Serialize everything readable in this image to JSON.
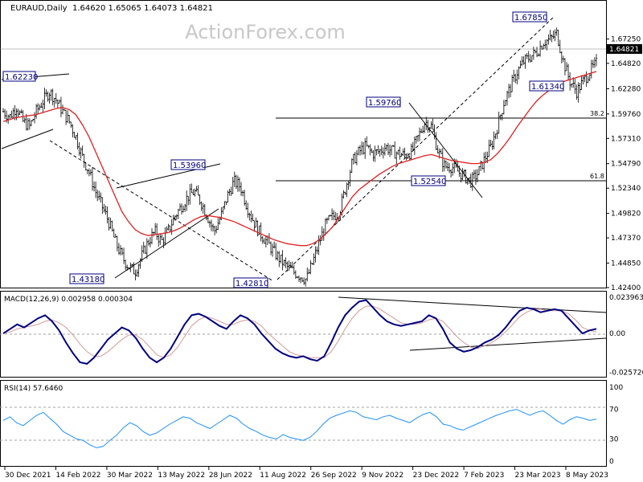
{
  "header": {
    "symbol": "EURAUD,Daily",
    "ohlc": "1.64620 1.65065 1.64073 1.64821"
  },
  "watermark": "ActionForex.com",
  "chart_data": {
    "type": "ohlc",
    "main": {
      "y_ticks": [
        "1.67250",
        "1.64820",
        "1.62280",
        "1.59760",
        "1.57310",
        "1.54790",
        "1.52340",
        "1.49820",
        "1.47370",
        "1.44850",
        "1.42400"
      ],
      "y_range": [
        1.424,
        1.689
      ],
      "current_price": "1.64821",
      "price_labels": [
        "1.62230",
        "1.53960",
        "1.43180",
        "1.42810",
        "1.59760",
        "1.52540",
        "1.67850",
        "1.61340"
      ],
      "fib_labels": [
        "38.2",
        "61.8"
      ],
      "key_levels": {
        "fib_382": 1.5761,
        "fib_618": 1.5254
      },
      "close_series": [
        1.6,
        1.595,
        1.605,
        1.59,
        1.585,
        1.6,
        1.61,
        1.62,
        1.612,
        1.6,
        1.59,
        1.575,
        1.555,
        1.54,
        1.52,
        1.505,
        1.49,
        1.47,
        1.455,
        1.445,
        1.44,
        1.455,
        1.47,
        1.48,
        1.47,
        1.48,
        1.495,
        1.505,
        1.515,
        1.52,
        1.51,
        1.495,
        1.48,
        1.495,
        1.515,
        1.53,
        1.525,
        1.505,
        1.49,
        1.478,
        1.47,
        1.46,
        1.452,
        1.445,
        1.44,
        1.436,
        1.432,
        1.45,
        1.47,
        1.488,
        1.495,
        1.5,
        1.525,
        1.55,
        1.56,
        1.565,
        1.558,
        1.56,
        1.565,
        1.56,
        1.558,
        1.556,
        1.56,
        1.575,
        1.59,
        1.585,
        1.56,
        1.545,
        1.545,
        1.54,
        1.535,
        1.53,
        1.538,
        1.552,
        1.565,
        1.585,
        1.61,
        1.625,
        1.64,
        1.65,
        1.655,
        1.66,
        1.67,
        1.672,
        1.678,
        1.65,
        1.63,
        1.62,
        1.63,
        1.64,
        1.648
      ],
      "ma_series": [
        1.59,
        1.592,
        1.594,
        1.595,
        1.596,
        1.597,
        1.599,
        1.601,
        1.603,
        1.604,
        1.602,
        1.597,
        1.587,
        1.575,
        1.56,
        1.545,
        1.53,
        1.515,
        1.5,
        1.49,
        1.482,
        1.478,
        1.476,
        1.477,
        1.478,
        1.479,
        1.481,
        1.484,
        1.488,
        1.492,
        1.495,
        1.496,
        1.495,
        1.494,
        1.492,
        1.49,
        1.487,
        1.484,
        1.481,
        1.478,
        1.475,
        1.472,
        1.47,
        1.468,
        1.467,
        1.466,
        1.466,
        1.468,
        1.472,
        1.478,
        1.485,
        1.495,
        1.505,
        1.515,
        1.522,
        1.527,
        1.532,
        1.537,
        1.541,
        1.545,
        1.548,
        1.55,
        1.552,
        1.554,
        1.556,
        1.557,
        1.555,
        1.553,
        1.551,
        1.55,
        1.549,
        1.548,
        1.548,
        1.549,
        1.552,
        1.558,
        1.566,
        1.575,
        1.585,
        1.594,
        1.603,
        1.611,
        1.617,
        1.622,
        1.627,
        1.63,
        1.632,
        1.634,
        1.636,
        1.638,
        1.64
      ]
    },
    "macd": {
      "label": "MACD(12,26,9) 0.002958 0.000304",
      "y_ticks": [
        "0.023963",
        "0.00",
        "-0.025726"
      ],
      "y_range": [
        -0.028,
        0.026
      ],
      "series": [
        0.0,
        0.003,
        0.006,
        0.004,
        0.007,
        0.01,
        0.012,
        0.008,
        0.002,
        -0.006,
        -0.013,
        -0.019,
        -0.02,
        -0.016,
        -0.01,
        -0.004,
        0.0,
        0.004,
        0.002,
        -0.003,
        -0.01,
        -0.016,
        -0.019,
        -0.016,
        -0.01,
        -0.002,
        0.006,
        0.012,
        0.013,
        0.011,
        0.008,
        0.005,
        0.003,
        0.008,
        0.012,
        0.01,
        0.006,
        0.0,
        -0.005,
        -0.01,
        -0.013,
        -0.015,
        -0.016,
        -0.015,
        -0.017,
        -0.018,
        -0.015,
        -0.006,
        0.004,
        0.012,
        0.017,
        0.021,
        0.022,
        0.017,
        0.012,
        0.008,
        0.006,
        0.005,
        0.006,
        0.007,
        0.008,
        0.012,
        0.01,
        0.003,
        -0.006,
        -0.01,
        -0.012,
        -0.011,
        -0.009,
        -0.006,
        -0.004,
        -0.001,
        0.004,
        0.01,
        0.015,
        0.017,
        0.016,
        0.014,
        0.015,
        0.016,
        0.015,
        0.01,
        0.005,
        0.0,
        0.002,
        0.003
      ],
      "signal": [
        0.0,
        0.001,
        0.003,
        0.004,
        0.005,
        0.006,
        0.008,
        0.009,
        0.007,
        0.004,
        -0.001,
        -0.007,
        -0.012,
        -0.015,
        -0.015,
        -0.012,
        -0.008,
        -0.004,
        -0.001,
        -0.001,
        -0.004,
        -0.009,
        -0.014,
        -0.016,
        -0.014,
        -0.009,
        -0.002,
        0.005,
        0.009,
        0.011,
        0.01,
        0.008,
        0.006,
        0.006,
        0.008,
        0.009,
        0.008,
        0.005,
        0.0,
        -0.004,
        -0.008,
        -0.012,
        -0.014,
        -0.015,
        -0.016,
        -0.016,
        -0.016,
        -0.012,
        -0.005,
        0.003,
        0.01,
        0.015,
        0.018,
        0.018,
        0.016,
        0.013,
        0.01,
        0.007,
        0.006,
        0.006,
        0.007,
        0.009,
        0.01,
        0.008,
        0.003,
        -0.002,
        -0.006,
        -0.009,
        -0.01,
        -0.008,
        -0.006,
        -0.003,
        0.001,
        0.006,
        0.011,
        0.014,
        0.016,
        0.016,
        0.015,
        0.015,
        0.015,
        0.013,
        0.009,
        0.004,
        0.002,
        0.001
      ]
    },
    "rsi": {
      "label": "RSI(14) 57.6460",
      "y_ticks": [
        "100",
        "70",
        "30",
        "0"
      ],
      "y_range": [
        0,
        100
      ],
      "series": [
        55,
        60,
        52,
        48,
        55,
        62,
        66,
        58,
        50,
        40,
        35,
        30,
        28,
        22,
        18,
        20,
        28,
        35,
        45,
        52,
        48,
        40,
        35,
        38,
        44,
        50,
        55,
        60,
        58,
        52,
        48,
        44,
        50,
        56,
        62,
        58,
        50,
        44,
        40,
        35,
        32,
        30,
        36,
        32,
        30,
        28,
        32,
        40,
        50,
        58,
        62,
        65,
        68,
        66,
        60,
        58,
        56,
        60,
        62,
        58,
        55,
        52,
        58,
        63,
        66,
        60,
        50,
        48,
        44,
        42,
        46,
        50,
        54,
        58,
        62,
        65,
        68,
        70,
        66,
        62,
        66,
        68,
        62,
        55,
        50,
        56,
        60,
        58,
        55,
        57
      ]
    },
    "x_labels": [
      "30 Dec 2021",
      "14 Feb 2022",
      "30 Mar 2022",
      "13 May 2022",
      "28 Jun 2022",
      "11 Aug 2022",
      "26 Sep 2022",
      "9 Nov 2022",
      "23 Dec 2022",
      "7 Feb 2023",
      "23 Mar 2023",
      "8 May 2023"
    ]
  },
  "colors": {
    "bars": "#000000",
    "ma": "#e02020",
    "macd": "#000080",
    "signal": "#d49a9a",
    "rsi": "#1e90ff",
    "label_box": "#000080",
    "grid": "#c0c0c0",
    "watermark": "#c8c8c8"
  }
}
